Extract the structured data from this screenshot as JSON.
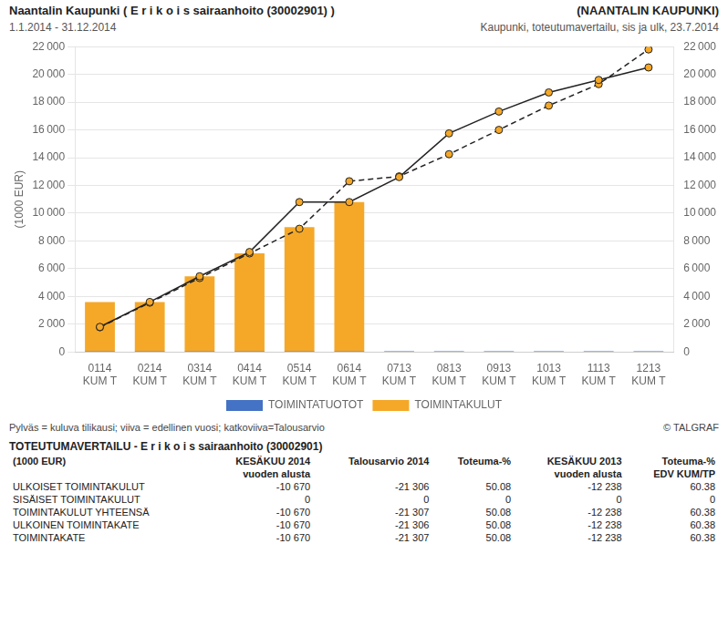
{
  "chart_data": {
    "type": "bar",
    "title": "Naantalin Kaupunki ( E r i k o i s sairaanhoito (30002901) )",
    "subtitle": "1.1.2014 - 31.12.2014",
    "annotations": [
      "(NAANTALIN KAUPUNKI)",
      "Kaupunki, toteutumavertailu, sis ja ulk, 23.7.2014",
      "Pylväs = kuluva tilikausi; viiva = edellinen vuosi; katkoviiva=Talousarvio",
      "© TALGRAF"
    ],
    "ylabel": "(1000 EUR)",
    "categories": [
      [
        "0114",
        "KUM T"
      ],
      [
        "0214",
        "KUM T"
      ],
      [
        "0314",
        "KUM T"
      ],
      [
        "0414",
        "KUM T"
      ],
      [
        "0514",
        "KUM T"
      ],
      [
        "0614",
        "KUM T"
      ],
      [
        "0713",
        "KUM T"
      ],
      [
        "0813",
        "KUM T"
      ],
      [
        "0913",
        "KUM T"
      ],
      [
        "1013",
        "KUM T"
      ],
      [
        "1113",
        "KUM T"
      ],
      [
        "1213",
        "KUM T"
      ]
    ],
    "series": [
      {
        "name": "TOIMINTATUOTOT",
        "type": "bar",
        "color": "#4472C4",
        "values": [
          60,
          60,
          60,
          60,
          60,
          60,
          60,
          60,
          60,
          60,
          60,
          60
        ]
      },
      {
        "name": "TOIMINTAKULUT",
        "type": "bar",
        "color": "#F5A828",
        "values": [
          3600,
          3600,
          5450,
          7100,
          9000,
          10800,
          0,
          0,
          0,
          0,
          0,
          0
        ]
      },
      {
        "type": "line",
        "color": "#222222",
        "marker": "circle",
        "line_style": "solid",
        "values": [
          1800,
          3600,
          5450,
          7200,
          10800,
          10800,
          12600,
          15750,
          17325,
          18700,
          19600,
          20500
        ]
      },
      {
        "type": "line",
        "color": "#222222",
        "marker": "circle",
        "line_style": "dashed",
        "values": [
          1775,
          3550,
          5325,
          7100,
          8875,
          12300,
          12650,
          14250,
          16000,
          17750,
          19300,
          21800
        ]
      }
    ],
    "ylim": [
      0,
      22000
    ],
    "yticks": [
      0,
      {
        "value": 2000,
        "label": "2 000"
      },
      {
        "value": 4000,
        "label": "4 000"
      },
      {
        "value": 6000,
        "label": "6 000"
      },
      {
        "value": 8000,
        "label": "8 000"
      },
      {
        "value": 10000,
        "label": "10 000"
      },
      {
        "value": 12000,
        "label": "12 000"
      },
      {
        "value": 14000,
        "label": "14 000"
      },
      {
        "value": 16000,
        "label": "16 000"
      },
      {
        "value": 18000,
        "label": "18 000"
      },
      {
        "value": 20000,
        "label": "20 000"
      },
      {
        "value": 22000,
        "label": "22 000"
      }
    ],
    "y2lim": [
      0,
      22000
    ],
    "y2ticks": [
      0,
      {
        "value": 2000,
        "label": "2 000"
      },
      {
        "value": 4000,
        "label": "4 000"
      },
      {
        "value": 6000,
        "label": "6 000"
      },
      {
        "value": 8000,
        "label": "8 000"
      },
      {
        "value": 10000,
        "label": "10 000"
      },
      {
        "value": 12000,
        "label": "12 000"
      },
      {
        "value": 14000,
        "label": "14 000"
      },
      {
        "value": 16000,
        "label": "16 000"
      },
      {
        "value": 18000,
        "label": "18 000"
      },
      {
        "value": 20000,
        "label": "20 000"
      },
      {
        "value": 22000,
        "label": "22 000"
      }
    ],
    "grid": true,
    "legend": "bottom",
    "table": {
      "title": "TOTEUTUMAVERTAILU - E r i k o i s sairaanhoito (30002901)",
      "header": [
        [
          "(1000 EUR)",
          "KESÄKUU 2014",
          "Talousarvio 2014",
          "Toteuma-%",
          "KESÄKUU 2013",
          "Toteuma-%"
        ],
        [
          null,
          "vuoden alusta",
          null,
          null,
          "vuoden alusta",
          "EDV KUM/TP"
        ]
      ],
      "rows": [
        [
          "ULKOISET TOIMINTAKULUT",
          "-10 670",
          "-21 306",
          "50.08",
          "-12 238",
          "60.38"
        ],
        [
          "SISÄISET TOIMINTAKULUT",
          "0",
          "0",
          "0",
          "0",
          "0"
        ],
        [
          "TOIMINTAKULUT YHTEENSÄ",
          "-10 670",
          "-21 307",
          "50.08",
          "-12 238",
          "60.38"
        ],
        [
          "ULKOINEN TOIMINTAKATE",
          "-10 670",
          "-21 306",
          "50.08",
          "-12 238",
          "60.38"
        ],
        [
          "TOIMINTAKATE",
          "-10 670",
          "-21 307",
          "50.08",
          "-12 238",
          "60.38"
        ]
      ]
    }
  }
}
